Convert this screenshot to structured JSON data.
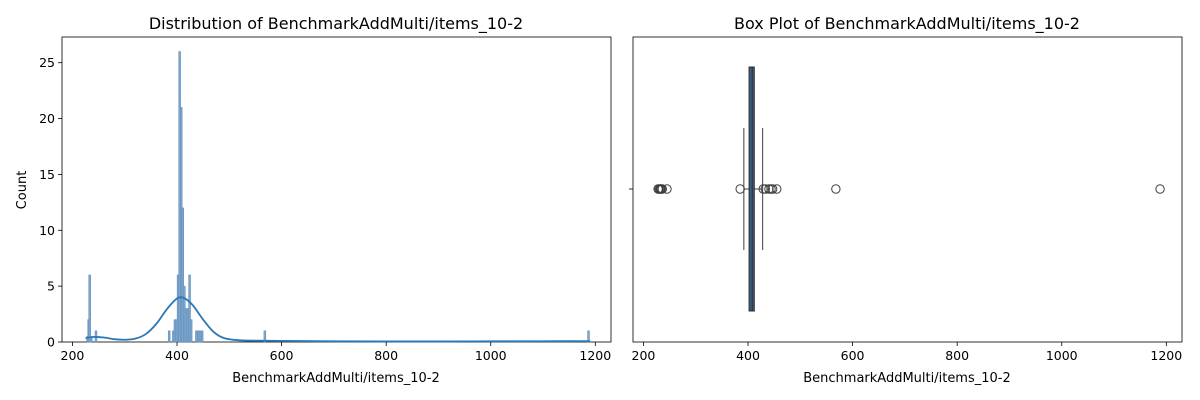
{
  "chart_data": [
    {
      "type": "histogram",
      "title": "Distribution of BenchmarkAddMulti/items_10-2",
      "xlabel": "BenchmarkAddMulti/items_10-2",
      "ylabel": "Count",
      "xlim": [
        180,
        1230
      ],
      "ylim": [
        0,
        27.3
      ],
      "xticks": [
        200,
        400,
        600,
        800,
        1000,
        1200
      ],
      "yticks": [
        0,
        5,
        10,
        15,
        20,
        25
      ],
      "bin_width": 3.7,
      "bars": [
        {
          "x": 229,
          "count": 0.5
        },
        {
          "x": 231,
          "count": 2
        },
        {
          "x": 233,
          "count": 6
        },
        {
          "x": 236,
          "count": 0.5
        },
        {
          "x": 245,
          "count": 1
        },
        {
          "x": 385,
          "count": 1
        },
        {
          "x": 393,
          "count": 1
        },
        {
          "x": 396,
          "count": 2
        },
        {
          "x": 399,
          "count": 2
        },
        {
          "x": 402,
          "count": 6
        },
        {
          "x": 405,
          "count": 26
        },
        {
          "x": 408,
          "count": 21
        },
        {
          "x": 411,
          "count": 12
        },
        {
          "x": 414,
          "count": 5
        },
        {
          "x": 417,
          "count": 3
        },
        {
          "x": 421,
          "count": 3
        },
        {
          "x": 424,
          "count": 6
        },
        {
          "x": 427,
          "count": 2
        },
        {
          "x": 437,
          "count": 1
        },
        {
          "x": 441,
          "count": 1
        },
        {
          "x": 444,
          "count": 1
        },
        {
          "x": 448,
          "count": 1
        },
        {
          "x": 568,
          "count": 1
        },
        {
          "x": 1187,
          "count": 1
        }
      ],
      "kde": [
        {
          "x": 225,
          "y": 0.35
        },
        {
          "x": 240,
          "y": 0.45
        },
        {
          "x": 260,
          "y": 0.4
        },
        {
          "x": 280,
          "y": 0.25
        },
        {
          "x": 300,
          "y": 0.2
        },
        {
          "x": 320,
          "y": 0.3
        },
        {
          "x": 340,
          "y": 0.7
        },
        {
          "x": 360,
          "y": 1.6
        },
        {
          "x": 380,
          "y": 2.9
        },
        {
          "x": 395,
          "y": 3.7
        },
        {
          "x": 405,
          "y": 4.0
        },
        {
          "x": 415,
          "y": 3.9
        },
        {
          "x": 430,
          "y": 3.3
        },
        {
          "x": 450,
          "y": 2.0
        },
        {
          "x": 470,
          "y": 0.9
        },
        {
          "x": 490,
          "y": 0.35
        },
        {
          "x": 520,
          "y": 0.15
        },
        {
          "x": 560,
          "y": 0.12
        },
        {
          "x": 600,
          "y": 0.1
        },
        {
          "x": 700,
          "y": 0.06
        },
        {
          "x": 800,
          "y": 0.05
        },
        {
          "x": 900,
          "y": 0.05
        },
        {
          "x": 1000,
          "y": 0.06
        },
        {
          "x": 1100,
          "y": 0.07
        },
        {
          "x": 1190,
          "y": 0.08
        }
      ],
      "colors": {
        "bar": "#7ea6cc",
        "bar_edge": "#5d8bb8",
        "kde": "#2b78b6"
      }
    },
    {
      "type": "box",
      "title": "Box Plot of BenchmarkAddMulti/items_10-2",
      "xlabel": "BenchmarkAddMulti/items_10-2",
      "xlim": [
        180,
        1230
      ],
      "xticks": [
        200,
        400,
        600,
        800,
        1000,
        1200
      ],
      "box": {
        "q1": 402,
        "median": 408,
        "q3": 412,
        "whisker_low": 392,
        "whisker_high": 428
      },
      "outliers": [
        228,
        230,
        232,
        233,
        234,
        236,
        245,
        385,
        429,
        433,
        440,
        444,
        447,
        455,
        568,
        1188
      ],
      "colors": {
        "box": "#3b5d80",
        "whisker": "#3f3f3f",
        "outlier_edge": "#3f3f3f"
      }
    }
  ]
}
